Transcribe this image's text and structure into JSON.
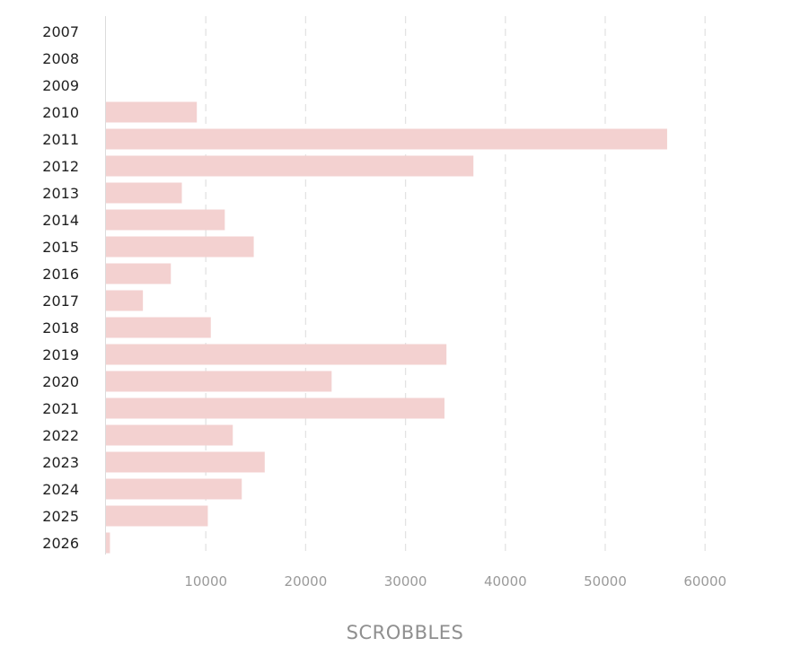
{
  "chart_data": {
    "type": "bar",
    "orientation": "horizontal",
    "categories": [
      "2007",
      "2008",
      "2009",
      "2010",
      "2011",
      "2012",
      "2013",
      "2014",
      "2015",
      "2016",
      "2017",
      "2018",
      "2019",
      "2020",
      "2021",
      "2022",
      "2023",
      "2024",
      "2025",
      "2026"
    ],
    "values": [
      0,
      0,
      0,
      9100,
      56200,
      36800,
      7600,
      11900,
      14800,
      6500,
      3700,
      10500,
      34100,
      22600,
      33900,
      12700,
      15900,
      13600,
      10200,
      400
    ],
    "xlabel": "SCROBBLES",
    "xticks": [
      10000,
      20000,
      30000,
      40000,
      50000,
      60000
    ],
    "xlim": [
      0,
      60000
    ],
    "grid": "vertical dashed",
    "colors": {
      "bar": "#f3d1d0",
      "grid": "#e3e3e3",
      "axis": "#dcdcdc"
    }
  }
}
